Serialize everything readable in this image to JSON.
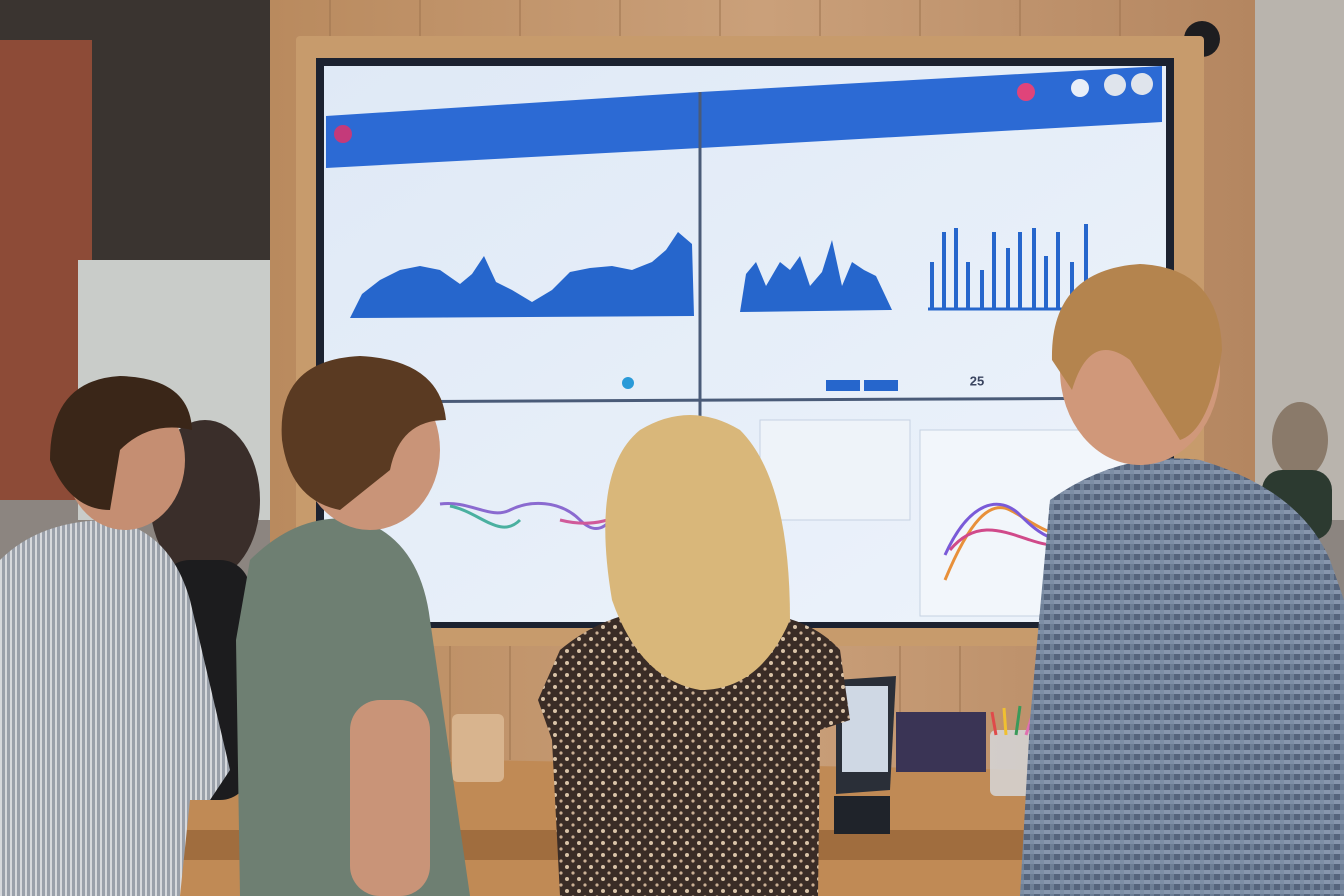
{
  "screen": {
    "stat": "25"
  }
}
